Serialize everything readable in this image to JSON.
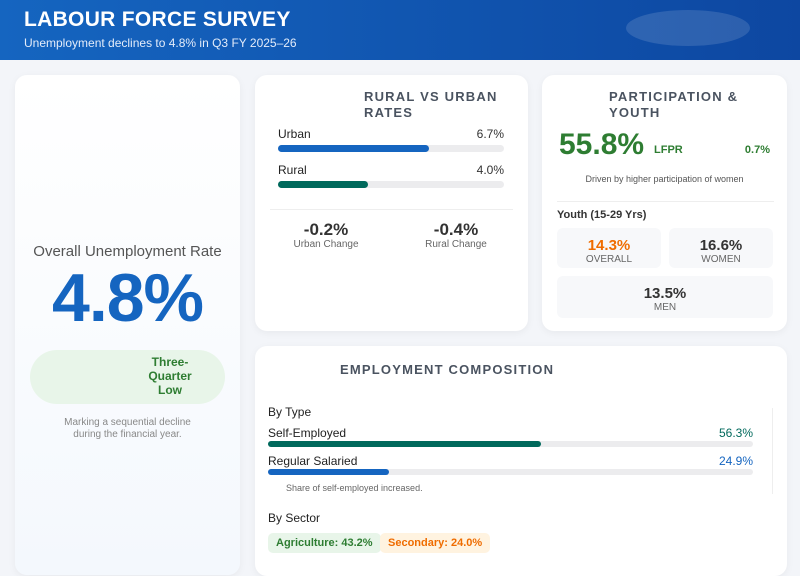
{
  "header": {
    "title": "LABOUR FORCE SURVEY",
    "subtitle": "Unemployment declines to 4.8% in Q3 FY 2025–26"
  },
  "overall": {
    "label": "Overall Unemployment Rate",
    "value": "4.8%",
    "badge": "Three-Quarter Low",
    "note": "Marking a sequential decline during the financial year.",
    "color": "#1565c0"
  },
  "rural_urban": {
    "title": "RURAL VS URBAN RATES",
    "bars": [
      {
        "label": "Urban",
        "value": "6.7%",
        "fill": 0.67,
        "color": "#1565c0"
      },
      {
        "label": "Rural",
        "value": "4.0%",
        "fill": 0.4,
        "color": "#00695c"
      }
    ],
    "changes": [
      {
        "value": "-0.2%",
        "label": "Urban Change"
      },
      {
        "value": "-0.4%",
        "label": "Rural Change"
      }
    ]
  },
  "participation": {
    "title": "PARTICIPATION & YOUTH",
    "value": "55.8%",
    "metric": "LFPR",
    "change": "0.7%",
    "note": "Driven by higher participation of women",
    "youth_title": "Youth (15-29 Yrs)",
    "tiles": [
      {
        "value": "14.3%",
        "label": "OVERALL"
      },
      {
        "value": "16.6%",
        "label": "WOMEN"
      },
      {
        "value": "13.5%",
        "label": "MEN"
      }
    ]
  },
  "employment": {
    "title": "EMPLOYMENT COMPOSITION",
    "by_type": "By Type",
    "bars": [
      {
        "label": "Self-Employed",
        "value": "56.3%",
        "fill": 0.563,
        "color": "#00695c"
      },
      {
        "label": "Regular Salaried",
        "value": "24.9%",
        "fill": 0.249,
        "color": "#1565c0"
      }
    ],
    "note": "Share of self-employed increased.",
    "by_sector": "By Sector",
    "sectors": [
      {
        "label": "Agriculture: 43.2%"
      },
      {
        "label": "Secondary: 24.0%"
      }
    ]
  }
}
